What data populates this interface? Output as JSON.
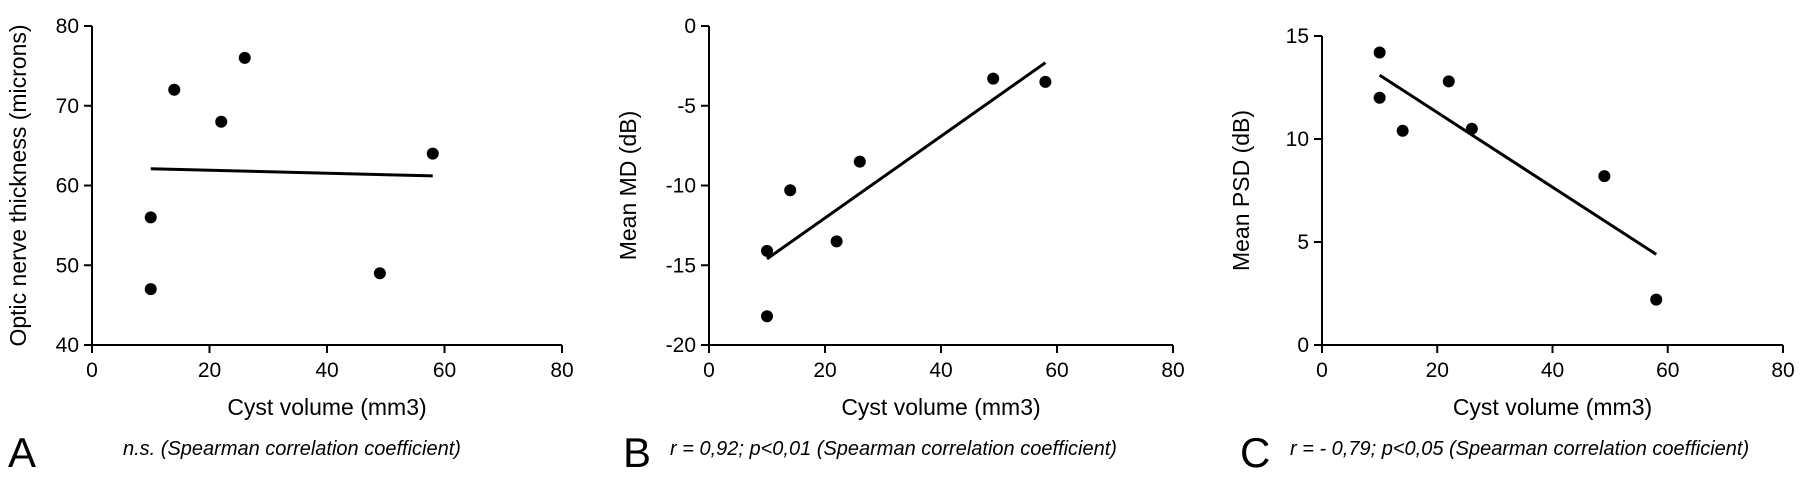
{
  "chart_data": [
    {
      "type": "scatter",
      "panel_letter": "A",
      "caption": "n.s. (Spearman correlation coefficient)",
      "xlabel": "Cyst volume (mm3)",
      "ylabel": "Optic nerve thickness (microns)",
      "xlim": [
        0,
        80
      ],
      "ylim": [
        40,
        80
      ],
      "xticks": [
        0,
        20,
        40,
        60,
        80
      ],
      "yticks": [
        40,
        50,
        60,
        70,
        80
      ],
      "xtick_labels": [
        "0",
        "20",
        "40",
        "60",
        "80"
      ],
      "ytick_labels": [
        "40",
        "50",
        "60",
        "70",
        "80"
      ],
      "points": [
        {
          "x": 10,
          "y": 56
        },
        {
          "x": 10,
          "y": 47
        },
        {
          "x": 14,
          "y": 72
        },
        {
          "x": 22,
          "y": 68
        },
        {
          "x": 26,
          "y": 76
        },
        {
          "x": 49,
          "y": 49
        },
        {
          "x": 58,
          "y": 64
        }
      ],
      "regression_line": {
        "x": [
          10,
          58
        ],
        "y": [
          62.1,
          61.2
        ]
      }
    },
    {
      "type": "scatter",
      "panel_letter": "B",
      "caption": "r = 0,92; p<0,01 (Spearman correlation coefficient)",
      "xlabel": "Cyst volume (mm3)",
      "ylabel": "Mean MD (dB)",
      "xlim": [
        0,
        80
      ],
      "ylim": [
        -20,
        0
      ],
      "xticks": [
        0,
        20,
        40,
        60,
        80
      ],
      "yticks": [
        -20,
        -15,
        -10,
        -5,
        0
      ],
      "xtick_labels": [
        "0",
        "20",
        "40",
        "60",
        "80"
      ],
      "ytick_labels": [
        "-20",
        "-15",
        "-10",
        "-5",
        "0"
      ],
      "points": [
        {
          "x": 10,
          "y": -14.1
        },
        {
          "x": 10,
          "y": -18.2
        },
        {
          "x": 14,
          "y": -10.3
        },
        {
          "x": 22,
          "y": -13.5
        },
        {
          "x": 26,
          "y": -8.5
        },
        {
          "x": 49,
          "y": -3.3
        },
        {
          "x": 58,
          "y": -3.5
        }
      ],
      "regression_line": {
        "x": [
          10,
          58
        ],
        "y": [
          -14.6,
          -2.3
        ]
      }
    },
    {
      "type": "scatter",
      "panel_letter": "C",
      "caption": "r = - 0,79; p<0,05 (Spearman correlation coefficient)",
      "xlabel": "Cyst volume (mm3)",
      "ylabel": "Mean PSD (dB)",
      "xlim": [
        0,
        80
      ],
      "ylim": [
        0,
        15
      ],
      "xticks": [
        0,
        20,
        40,
        60,
        80
      ],
      "yticks": [
        0,
        5,
        10,
        15
      ],
      "xtick_labels": [
        "0",
        "20",
        "40",
        "60",
        "80"
      ],
      "ytick_labels": [
        "0",
        "5",
        "10",
        "15"
      ],
      "points": [
        {
          "x": 10,
          "y": 14.2
        },
        {
          "x": 10,
          "y": 12.0
        },
        {
          "x": 14,
          "y": 10.4
        },
        {
          "x": 22,
          "y": 12.8
        },
        {
          "x": 26,
          "y": 10.5
        },
        {
          "x": 49,
          "y": 8.2
        },
        {
          "x": 58,
          "y": 2.2
        }
      ],
      "regression_line": {
        "x": [
          10,
          58
        ],
        "y": [
          13.1,
          4.4
        ]
      }
    }
  ]
}
